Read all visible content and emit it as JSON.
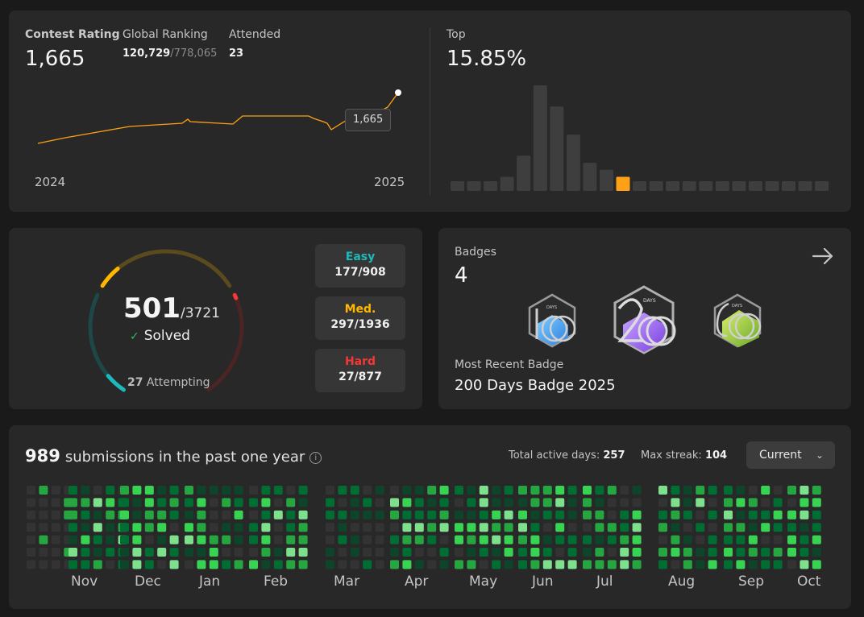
{
  "contest": {
    "rating_label": "Contest Rating",
    "rating_value": "1,665",
    "ranking_label": "Global Ranking",
    "ranking_value": "120,729",
    "ranking_total": "/778,065",
    "attended_label": "Attended",
    "attended_value": "23",
    "tooltip": "1,665",
    "year_start": "2024",
    "year_end": "2025",
    "top_label": "Top",
    "top_value": "15.85%",
    "line_color": "#ffa116",
    "histogram_bins": [
      1,
      1,
      1,
      2,
      5,
      15,
      12,
      8,
      4,
      3,
      2,
      1,
      1,
      1,
      1,
      1,
      1,
      1,
      1,
      1,
      1,
      1,
      1
    ],
    "histogram_highlight_index": 10
  },
  "solved": {
    "count": "501",
    "total": "/3721",
    "solved_label": "Solved",
    "attempting_count": "27",
    "attempting_label": " Attempting",
    "easy_fraction": 0.195,
    "medium_fraction": 0.153,
    "hard_fraction": 0.031,
    "difficulties": [
      {
        "name": "Easy",
        "value": "177/908",
        "color": "#1cbaba"
      },
      {
        "name": "Med.",
        "value": "297/1936",
        "color": "#ffb700"
      },
      {
        "name": "Hard",
        "value": "27/877",
        "color": "#f63737"
      }
    ]
  },
  "badges": {
    "title": "Badges",
    "count": "4",
    "items": [
      {
        "name": "100 Days Badge",
        "label": "DAYS",
        "color": "#4aa3f0"
      },
      {
        "name": "200 Days Badge",
        "label": "DAYS",
        "color": "#a26ef5"
      },
      {
        "name": "50 Days Badge",
        "label": "DAYS",
        "color": "#9acd32"
      }
    ],
    "recent_label": "Most Recent Badge",
    "recent_name": "200 Days Badge 2025"
  },
  "submissions": {
    "count": "989",
    "label": "submissions in the past one year",
    "active_days_label": "Total active days:",
    "active_days": "257",
    "max_streak_label": "Max streak:",
    "max_streak": "104",
    "dropdown": "Current",
    "months": [
      "Nov",
      "Dec",
      "Jan",
      "Feb",
      "Mar",
      "Apr",
      "May",
      "Jun",
      "Jul",
      "Aug",
      "Sep",
      "Oct"
    ],
    "heat_colors": [
      "#333333",
      "#0e4429",
      "#006d32",
      "#26a641",
      "#39d353",
      "#7ee08c"
    ]
  }
}
